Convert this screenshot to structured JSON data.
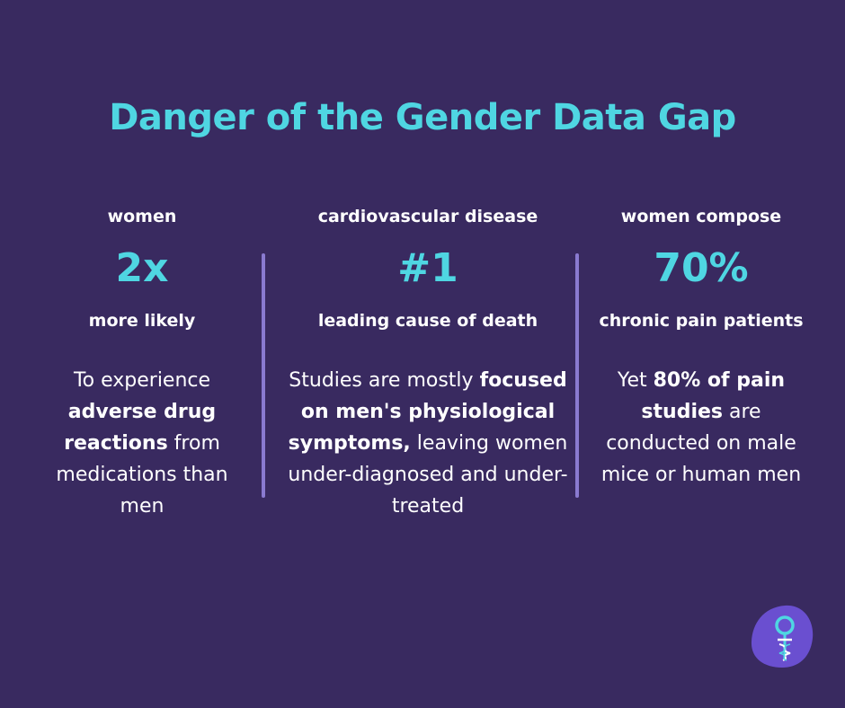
{
  "title": "Danger of the Gender Data Gap",
  "columns": [
    {
      "top_label": "women",
      "stat": "2x",
      "bottom_label": "more likely",
      "body": {
        "t1": "To experience ",
        "b1": "adverse drug reactions",
        "t2": " from medications than men"
      }
    },
    {
      "top_label": "cardiovascular disease",
      "stat": "#1",
      "bottom_label": "leading cause of death",
      "body": {
        "t1": "Studies are mostly ",
        "b1": "focused on men's physiological symptoms,",
        "t2": " leaving women under-diagnosed and under-treated"
      }
    },
    {
      "top_label": "women compose",
      "stat": "70%",
      "bottom_label": "chronic pain patients",
      "body": {
        "t1": "Yet ",
        "b1": "80% of pain studies",
        "t2": " are conducted on male mice or human men"
      }
    }
  ],
  "colors": {
    "background": "#392a60",
    "accent": "#4fd6e2",
    "divider": "#8a7ad0",
    "logo_blob": "#6a4fd0"
  },
  "logo": {
    "icon": "female-symbol-dna-icon"
  }
}
